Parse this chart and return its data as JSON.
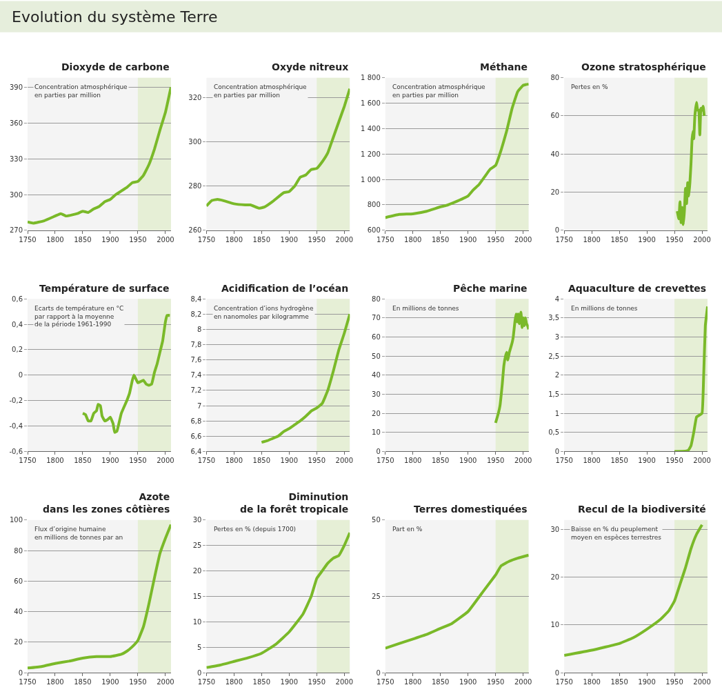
{
  "chart_data": [
    {
      "type": "other",
      "title": "Evolution du système Terre"
    },
    {
      "type": "line",
      "title": "Dioxyde de carbone",
      "annotations": [
        "Concentration atmosphérique\nen parties par million"
      ],
      "color": "#7ab929",
      "x": [
        1750,
        1760,
        1780,
        1800,
        1810,
        1820,
        1840,
        1850,
        1860,
        1870,
        1880,
        1890,
        1900,
        1910,
        1920,
        1930,
        1940,
        1950,
        1960,
        1970,
        1980,
        1990,
        2000,
        2010
      ],
      "values": [
        277,
        276,
        278,
        282,
        284,
        282,
        284,
        286,
        285,
        288,
        290,
        294,
        296,
        300,
        303,
        306,
        310,
        311,
        316,
        325,
        338,
        354,
        369,
        390
      ],
      "xlim": [
        1750,
        2010
      ],
      "xticks": [
        1750,
        1800,
        1850,
        1900,
        1950,
        2000
      ],
      "ylim": [
        270,
        398
      ],
      "yticks": [
        270,
        300,
        330,
        360,
        390
      ],
      "grid": "y",
      "bands": [
        {
          "axis": "x",
          "from": 1950,
          "to": 2010,
          "color": "#e6efd6"
        }
      ]
    },
    {
      "type": "line",
      "title": "Oxyde nitreux",
      "annotations": [
        "Concentration atmosphérique\nen parties par million"
      ],
      "color": "#7ab929",
      "x": [
        1750,
        1760,
        1770,
        1780,
        1800,
        1820,
        1830,
        1845,
        1855,
        1870,
        1890,
        1900,
        1910,
        1920,
        1930,
        1940,
        1950,
        1960,
        1970,
        1980,
        1990,
        2000,
        2010
      ],
      "values": [
        271,
        273.5,
        274,
        273.5,
        272,
        271.5,
        271.5,
        270,
        270.5,
        273,
        277,
        277.5,
        280,
        284,
        285,
        287.5,
        288,
        291,
        295,
        302,
        309,
        316,
        324
      ],
      "xlim": [
        1750,
        2010
      ],
      "xticks": [
        1750,
        1800,
        1850,
        1900,
        1950,
        2000
      ],
      "ylim": [
        260,
        329
      ],
      "yticks": [
        260,
        280,
        300,
        320
      ],
      "grid": "y",
      "bands": [
        {
          "axis": "x",
          "from": 1950,
          "to": 2010,
          "color": "#e6efd6"
        }
      ]
    },
    {
      "type": "line",
      "title": "Méthane",
      "annotations": [
        "Concentration atmosphérique\nen parties par million"
      ],
      "color": "#7ab929",
      "x": [
        1750,
        1775,
        1800,
        1825,
        1850,
        1860,
        1875,
        1900,
        1910,
        1920,
        1930,
        1940,
        1950,
        1960,
        1970,
        1980,
        1990,
        2000,
        2010
      ],
      "values": [
        700,
        725,
        730,
        750,
        785,
        795,
        820,
        870,
        920,
        960,
        1020,
        1080,
        1110,
        1230,
        1380,
        1560,
        1690,
        1740,
        1750
      ],
      "xlim": [
        1750,
        2010
      ],
      "xticks": [
        1750,
        1800,
        1850,
        1900,
        1950,
        2000
      ],
      "ylim": [
        600,
        1800
      ],
      "yticks": [
        600,
        800,
        {
          "value": 1000,
          "label": "1 000"
        },
        {
          "value": 1200,
          "label": "1 200"
        },
        {
          "value": 1400,
          "label": "1 400"
        },
        {
          "value": 1600,
          "label": "1 600"
        },
        {
          "value": 1800,
          "label": "1 800"
        }
      ],
      "grid": "y",
      "bands": [
        {
          "axis": "x",
          "from": 1950,
          "to": 2010,
          "color": "#e6efd6"
        }
      ]
    },
    {
      "type": "line",
      "title": "Ozone stratosphérique",
      "annotations": [
        "Pertes en %"
      ],
      "color": "#7ab929",
      "x": [
        1955,
        1958,
        1960,
        1962,
        1964,
        1966,
        1968,
        1970,
        1972,
        1974,
        1976,
        1978,
        1980,
        1982,
        1984,
        1985,
        1987,
        1990,
        1992,
        1994,
        1996,
        1998,
        2000,
        2002,
        2004
      ],
      "values": [
        10,
        6,
        15,
        4,
        12,
        3,
        10,
        22,
        14,
        25,
        18,
        25,
        35,
        48,
        52,
        48,
        60,
        67,
        63,
        63,
        50,
        64,
        63,
        65,
        60
      ],
      "xlim": [
        1750,
        2010
      ],
      "xticks": [
        1750,
        1800,
        1850,
        1900,
        1950,
        2000
      ],
      "ylim": [
        0,
        80
      ],
      "yticks": [
        0,
        20,
        40,
        60,
        80
      ],
      "grid": "y",
      "bands": [
        {
          "axis": "x",
          "from": 1950,
          "to": 2010,
          "color": "#e6efd6"
        }
      ]
    },
    {
      "type": "line",
      "title": "Température de surface",
      "annotations": [
        "Ecarts de température en °C\npar rapport à la moyenne\nde la période 1961-1990"
      ],
      "color": "#7ab929",
      "x": [
        1850,
        1855,
        1860,
        1865,
        1870,
        1875,
        1878,
        1882,
        1885,
        1890,
        1895,
        1900,
        1905,
        1908,
        1912,
        1920,
        1930,
        1935,
        1940,
        1943,
        1950,
        1955,
        1960,
        1965,
        1970,
        1975,
        1980,
        1985,
        1990,
        1995,
        2000,
        2003,
        2008
      ],
      "values": [
        -0.3,
        -0.31,
        -0.36,
        -0.36,
        -0.3,
        -0.28,
        -0.23,
        -0.24,
        -0.32,
        -0.36,
        -0.35,
        -0.33,
        -0.38,
        -0.45,
        -0.44,
        -0.3,
        -0.2,
        -0.14,
        -0.04,
        0.0,
        -0.06,
        -0.05,
        -0.04,
        -0.07,
        -0.08,
        -0.07,
        0.02,
        0.09,
        0.18,
        0.27,
        0.42,
        0.47,
        0.47
      ],
      "xlim": [
        1750,
        2010
      ],
      "xticks": [
        1750,
        1800,
        1850,
        1900,
        1950,
        2000
      ],
      "ylim": [
        -0.6,
        0.6
      ],
      "yticks": [
        {
          "value": -0.6,
          "label": "-0,6"
        },
        {
          "value": -0.4,
          "label": "-0,4"
        },
        {
          "value": -0.2,
          "label": "-0,2"
        },
        0,
        {
          "value": 0.2,
          "label": "0,2"
        },
        {
          "value": 0.4,
          "label": "0,4"
        },
        {
          "value": 0.6,
          "label": "0,6"
        }
      ],
      "grid": "y",
      "bands": [
        {
          "axis": "x",
          "from": 1950,
          "to": 2010,
          "color": "#e6efd6"
        }
      ]
    },
    {
      "type": "line",
      "title": "Acidification de l’océan",
      "annotations": [
        "Concentration d’ions hydrogène\nen nanomoles par kilogramme"
      ],
      "color": "#7ab929",
      "x": [
        1850,
        1860,
        1870,
        1880,
        1890,
        1900,
        1910,
        1920,
        1930,
        1940,
        1950,
        1960,
        1970,
        1980,
        1990,
        2000,
        2010
      ],
      "values": [
        6.52,
        6.54,
        6.57,
        6.6,
        6.66,
        6.7,
        6.75,
        6.8,
        6.86,
        6.93,
        6.97,
        7.03,
        7.2,
        7.45,
        7.73,
        7.95,
        8.2
      ],
      "xlim": [
        1750,
        2010
      ],
      "xticks": [
        1750,
        1800,
        1850,
        1900,
        1950,
        2000
      ],
      "ylim": [
        6.4,
        8.4
      ],
      "yticks": [
        {
          "value": 6.4,
          "label": "6,4"
        },
        {
          "value": 6.6,
          "label": "6,6"
        },
        {
          "value": 6.8,
          "label": "6,8"
        },
        7,
        {
          "value": 7.2,
          "label": "7,2"
        },
        {
          "value": 7.4,
          "label": "7,4"
        },
        {
          "value": 7.6,
          "label": "7,6"
        },
        {
          "value": 7.8,
          "label": "7,8"
        },
        8,
        {
          "value": 8.2,
          "label": "8,2"
        },
        {
          "value": 8.4,
          "label": "8,4"
        }
      ],
      "grid": "y",
      "bands": [
        {
          "axis": "x",
          "from": 1950,
          "to": 2010,
          "color": "#e6efd6"
        }
      ]
    },
    {
      "type": "line",
      "title": "Pêche marine",
      "annotations": [
        "En millions de tonnes"
      ],
      "color": "#7ab929",
      "x": [
        1950,
        1955,
        1958,
        1962,
        1965,
        1968,
        1970,
        1972,
        1975,
        1978,
        1980,
        1982,
        1985,
        1987,
        1989,
        1991,
        1993,
        1996,
        1998,
        2000,
        2002,
        2004,
        2006,
        2008,
        2010
      ],
      "values": [
        15,
        20,
        24,
        35,
        45,
        50,
        52,
        48,
        52,
        55,
        57,
        60,
        68,
        72,
        68,
        72,
        67,
        73,
        65,
        70,
        66,
        70,
        67,
        66,
        64
      ],
      "xlim": [
        1750,
        2010
      ],
      "xticks": [
        1750,
        1800,
        1850,
        1900,
        1950,
        2000
      ],
      "ylim": [
        0,
        80
      ],
      "yticks": [
        0,
        10,
        20,
        30,
        40,
        50,
        60,
        70,
        80
      ],
      "grid": "y",
      "bands": [
        {
          "axis": "x",
          "from": 1950,
          "to": 2010,
          "color": "#e6efd6"
        }
      ]
    },
    {
      "type": "line",
      "title": "Aquaculture de crevettes",
      "annotations": [
        "En millions de tonnes"
      ],
      "color": "#7ab929",
      "x": [
        1950,
        1970,
        1975,
        1980,
        1985,
        1990,
        1995,
        2000,
        2003,
        2006,
        2010
      ],
      "values": [
        0,
        0.01,
        0.03,
        0.15,
        0.5,
        0.9,
        0.95,
        1.0,
        2.0,
        3.3,
        3.8
      ],
      "xlim": [
        1750,
        2010
      ],
      "xticks": [
        1750,
        1800,
        1850,
        1900,
        1950,
        2000
      ],
      "ylim": [
        0,
        4
      ],
      "yticks": [
        0,
        {
          "value": 0.5,
          "label": "0,5"
        },
        1,
        {
          "value": 1.5,
          "label": "1,5"
        },
        2,
        {
          "value": 2.5,
          "label": "2,5"
        },
        3,
        {
          "value": 3.5,
          "label": "3,5"
        },
        4
      ],
      "grid": "y",
      "bands": [
        {
          "axis": "x",
          "from": 1950,
          "to": 2010,
          "color": "#e6efd6"
        }
      ]
    },
    {
      "type": "line",
      "title": "Azote\ndans les zones côtières",
      "annotations": [
        "Flux d’origine humaine\nen millions de tonnes par an"
      ],
      "color": "#7ab929",
      "x": [
        1750,
        1775,
        1800,
        1825,
        1850,
        1875,
        1900,
        1920,
        1930,
        1940,
        1950,
        1960,
        1970,
        1980,
        1990,
        2000,
        2010
      ],
      "values": [
        3,
        4,
        6,
        7.5,
        9.5,
        10.5,
        10.5,
        12,
        14,
        17,
        21,
        30,
        45,
        62,
        78,
        88,
        97
      ],
      "xlim": [
        1750,
        2010
      ],
      "xticks": [
        1750,
        1800,
        1850,
        1900,
        1950,
        2000
      ],
      "ylim": [
        0,
        100
      ],
      "yticks": [
        0,
        20,
        40,
        60,
        80,
        100
      ],
      "grid": "y",
      "bands": [
        {
          "axis": "x",
          "from": 1950,
          "to": 2010,
          "color": "#e6efd6"
        }
      ]
    },
    {
      "type": "line",
      "title": "Diminution\nde la forêt tropicale",
      "annotations": [
        "Pertes en % (depuis 1700)"
      ],
      "color": "#7ab929",
      "x": [
        1750,
        1775,
        1800,
        1825,
        1850,
        1875,
        1900,
        1925,
        1940,
        1950,
        1960,
        1970,
        1980,
        1990,
        2000,
        2010
      ],
      "values": [
        1,
        1.5,
        2.2,
        2.9,
        3.8,
        5.5,
        8,
        11.5,
        15,
        18.5,
        20,
        21.5,
        22.5,
        23,
        25,
        27.5
      ],
      "xlim": [
        1750,
        2010
      ],
      "xticks": [
        1750,
        1800,
        1850,
        1900,
        1950,
        2000
      ],
      "ylim": [
        0,
        30
      ],
      "yticks": [
        0,
        5,
        10,
        15,
        20,
        25,
        30
      ],
      "grid": "y",
      "bands": [
        {
          "axis": "x",
          "from": 1950,
          "to": 2010,
          "color": "#e6efd6"
        }
      ]
    },
    {
      "type": "line",
      "title": "Terres domestiquées",
      "annotations": [
        "Part en %"
      ],
      "color": "#7ab929",
      "x": [
        1750,
        1775,
        1800,
        1825,
        1850,
        1870,
        1900,
        1925,
        1950,
        1960,
        1975,
        1990,
        2010
      ],
      "values": [
        8,
        9.5,
        11,
        12.5,
        14.5,
        16,
        20,
        26,
        32,
        35,
        36.5,
        37.5,
        38.5
      ],
      "xlim": [
        1750,
        2010
      ],
      "xticks": [
        1750,
        1800,
        1850,
        1900,
        1950,
        2000
      ],
      "ylim": [
        0,
        50
      ],
      "yticks": [
        0,
        25,
        50
      ],
      "grid": "y",
      "bands": [
        {
          "axis": "x",
          "from": 1950,
          "to": 2010,
          "color": "#e6efd6"
        }
      ]
    },
    {
      "type": "line",
      "title": "Recul de la biodiversité",
      "annotations": [
        "Baisse en % du peuplement\nmoyen en espèces terrestres"
      ],
      "color": "#7ab929",
      "x": [
        1750,
        1800,
        1850,
        1875,
        1900,
        1925,
        1940,
        1950,
        1960,
        1970,
        1980,
        1990,
        2000
      ],
      "values": [
        3.6,
        4.7,
        6.1,
        7.3,
        9.1,
        11.2,
        13,
        15,
        18.5,
        22,
        26,
        29,
        31
      ],
      "xlim": [
        1750,
        2010
      ],
      "xticks": [
        1750,
        1800,
        1850,
        1900,
        1950,
        2000
      ],
      "ylim": [
        0,
        32
      ],
      "yticks": [
        0,
        10,
        20,
        30
      ],
      "grid": "y",
      "bands": [
        {
          "axis": "x",
          "from": 1950,
          "to": 2010,
          "color": "#e6efd6"
        }
      ]
    }
  ]
}
